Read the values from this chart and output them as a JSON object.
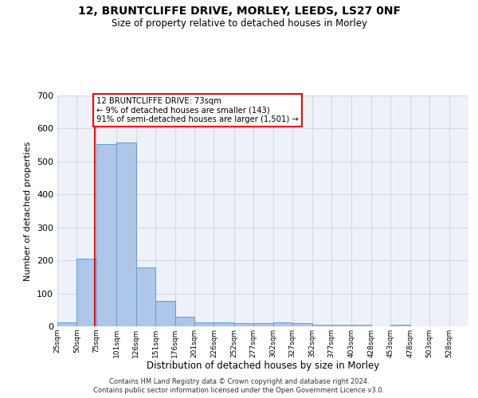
{
  "title": "12, BRUNTCLIFFE DRIVE, MORLEY, LEEDS, LS27 0NF",
  "subtitle": "Size of property relative to detached houses in Morley",
  "xlabel": "Distribution of detached houses by size in Morley",
  "ylabel": "Number of detached properties",
  "footer_line1": "Contains HM Land Registry data © Crown copyright and database right 2024.",
  "footer_line2": "Contains public sector information licensed under the Open Government Licence v3.0.",
  "annotation_line1": "12 BRUNTCLIFFE DRIVE: 73sqm",
  "annotation_line2": "← 9% of detached houses are smaller (143)",
  "annotation_line3": "91% of semi-detached houses are larger (1,501) →",
  "bar_edges": [
    25,
    50,
    75,
    101,
    126,
    151,
    176,
    201,
    226,
    252,
    277,
    302,
    327,
    352,
    377,
    403,
    428,
    453,
    478,
    503,
    528
  ],
  "bar_values": [
    12,
    205,
    552,
    557,
    178,
    77,
    29,
    12,
    11,
    9,
    9,
    11,
    9,
    6,
    5,
    5,
    0,
    5,
    0,
    0
  ],
  "bar_color": "#aec6e8",
  "bar_edge_color": "#5a9fd4",
  "property_line_x": 73,
  "property_line_color": "red",
  "grid_color": "#d0d8e8",
  "bg_color": "#eef2f8",
  "ylim": [
    0,
    700
  ],
  "yticks": [
    0,
    100,
    200,
    300,
    400,
    500,
    600,
    700
  ],
  "xlim_left": 25,
  "xlim_right": 553
}
